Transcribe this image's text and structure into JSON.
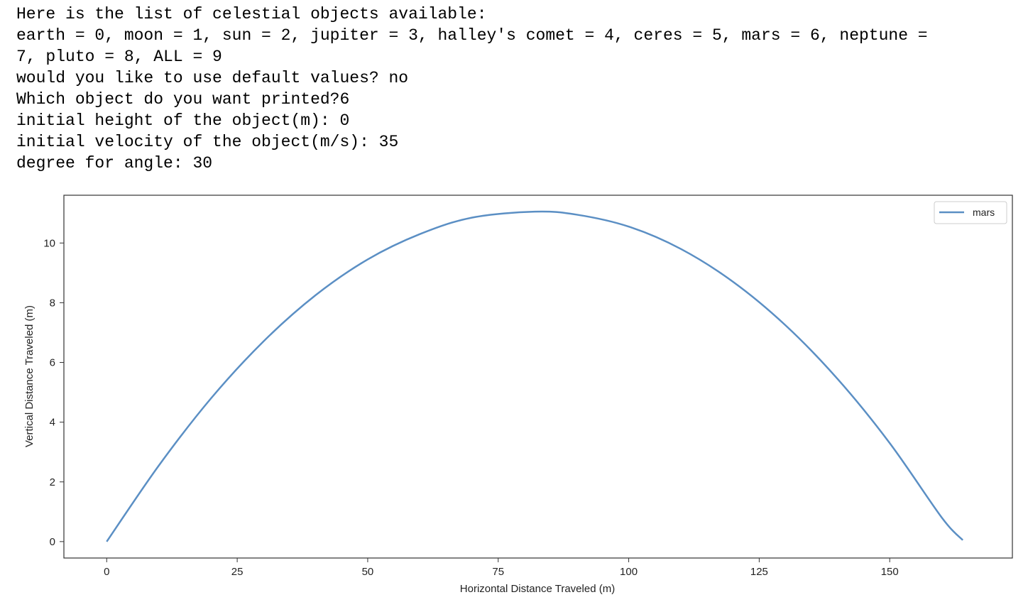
{
  "console": {
    "lines": [
      "Here is the list of celestial objects available:",
      "earth = 0, moon = 1, sun = 2, jupiter = 3, halley's comet = 4, ceres = 5, mars = 6, neptune =",
      "7, pluto = 8, ALL = 9",
      "would you like to use default values? no",
      "Which object do you want printed?6",
      "initial height of the object(m): 0",
      "initial velocity of the object(m/s): 35",
      "degree for angle: 30"
    ]
  },
  "chart_data": {
    "type": "line",
    "title": "",
    "xlabel": "Horizontal Distance Traveled (m)",
    "ylabel": "Vertical Distance Traveled (m)",
    "xlim": [
      -8.2,
      173.5
    ],
    "ylim": [
      -0.55,
      11.6
    ],
    "xticks": [
      0,
      25,
      50,
      75,
      100,
      125,
      150
    ],
    "yticks": [
      0,
      2,
      4,
      6,
      8,
      10
    ],
    "grid": false,
    "legend_position": "top-right",
    "series": [
      {
        "name": "mars",
        "color": "#5b8fc4",
        "x": [
          0,
          10,
          20,
          30,
          40,
          50,
          60,
          70,
          82,
          90,
          100,
          110,
          120,
          130,
          140,
          150,
          160,
          164
        ],
        "y": [
          0,
          2.55,
          4.8,
          6.7,
          8.25,
          9.45,
          10.3,
          10.85,
          11.05,
          10.95,
          10.55,
          9.8,
          8.7,
          7.25,
          5.45,
          3.3,
          0.8,
          0.05
        ]
      }
    ]
  }
}
